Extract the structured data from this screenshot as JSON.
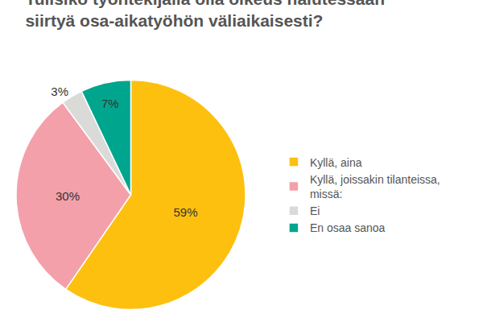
{
  "chart_data": {
    "type": "pie",
    "title": "Tulisiko työntekijällä olla oikeus halutessaan siirtyä osa-aikatyöhön väliaikaisesti?",
    "categories": [
      "Kyllä, aina",
      "Kyllä, joissakin tilanteissa, missä:",
      "Ei",
      "En osaa sanoa"
    ],
    "values": [
      59,
      30,
      3,
      7
    ],
    "value_labels": [
      "59%",
      "30%",
      "3%",
      "7%"
    ],
    "colors": [
      "#FDC00F",
      "#F4A0AB",
      "#DADAD8",
      "#00A58E"
    ],
    "data_labels": true,
    "legend": "right"
  }
}
